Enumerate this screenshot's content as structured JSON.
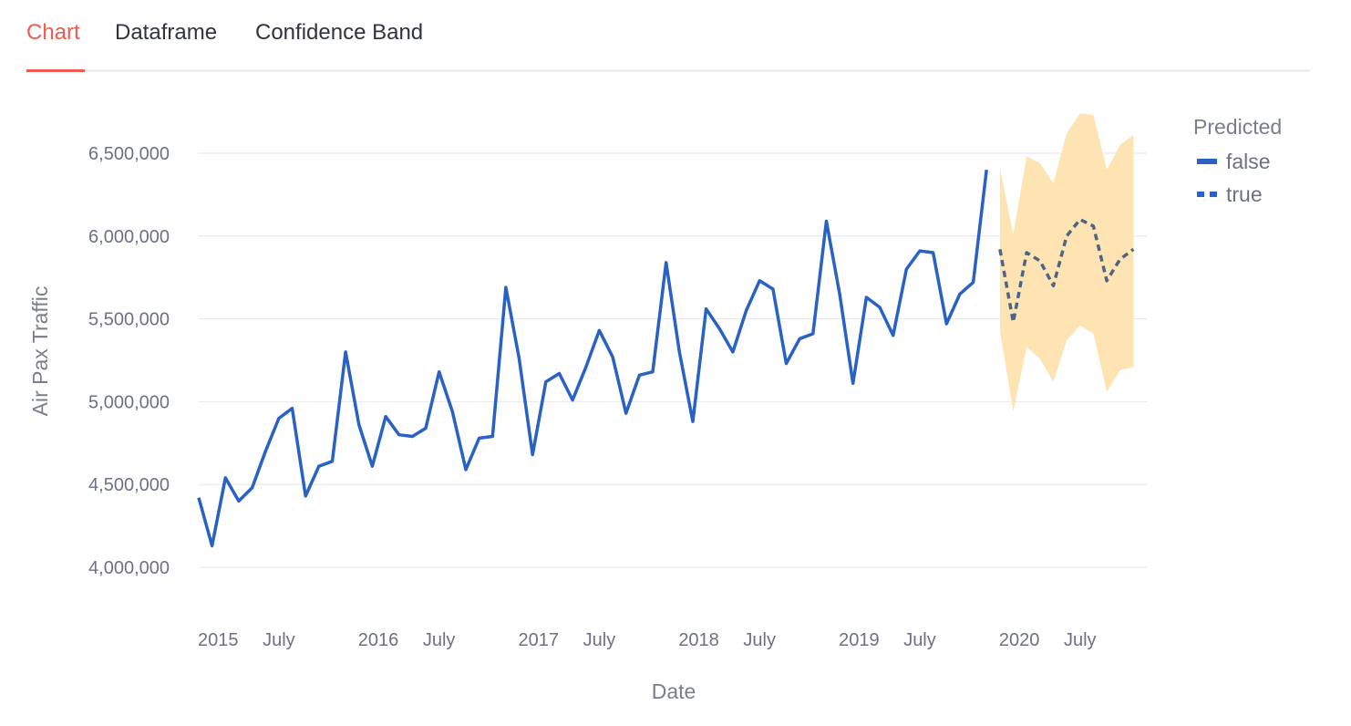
{
  "tabs": [
    {
      "label": "Chart",
      "active": true
    },
    {
      "label": "Dataframe",
      "active": false
    },
    {
      "label": "Confidence Band",
      "active": false
    }
  ],
  "chart_data": {
    "type": "line",
    "title": "",
    "xlabel": "Date",
    "ylabel": "Air Pax Traffic",
    "ylim": [
      4000000,
      6500000
    ],
    "yticks": [
      4000000,
      4500000,
      5000000,
      5500000,
      6000000,
      6500000
    ],
    "ytick_labels": [
      "4,000,000",
      "4,500,000",
      "5,000,000",
      "5,500,000",
      "6,000,000",
      "6,500,000"
    ],
    "xlim": [
      "2015-01",
      "2020-12"
    ],
    "xticks": [
      {
        "date": "2015-01",
        "label": "2015"
      },
      {
        "date": "2015-07",
        "label": "July"
      },
      {
        "date": "2016-01",
        "label": "2016"
      },
      {
        "date": "2016-07",
        "label": "July"
      },
      {
        "date": "2017-01",
        "label": "2017"
      },
      {
        "date": "2017-07",
        "label": "July"
      },
      {
        "date": "2018-01",
        "label": "2018"
      },
      {
        "date": "2018-07",
        "label": "July"
      },
      {
        "date": "2019-01",
        "label": "2019"
      },
      {
        "date": "2019-07",
        "label": "July"
      },
      {
        "date": "2020-01",
        "label": "2020"
      },
      {
        "date": "2020-07",
        "label": "July"
      }
    ],
    "grid": true,
    "legend": {
      "title": "Predicted",
      "position": "top-right"
    },
    "colors": {
      "line": "#2962c4",
      "predicted_line": "#4f6484",
      "band": "#fde4b2",
      "grid": "#e6e6ec"
    },
    "series": [
      {
        "name": "false",
        "style": "solid",
        "start": "2015-01",
        "values": [
          4420000,
          4130000,
          4540000,
          4400000,
          4480000,
          4700000,
          4900000,
          4960000,
          4430000,
          4610000,
          4640000,
          5300000,
          4860000,
          4610000,
          4910000,
          4800000,
          4790000,
          4840000,
          5180000,
          4940000,
          4590000,
          4780000,
          4790000,
          5690000,
          5260000,
          4680000,
          5120000,
          5170000,
          5010000,
          5210000,
          5430000,
          5270000,
          4930000,
          5160000,
          5180000,
          5840000,
          5300000,
          4880000,
          5560000,
          5440000,
          5300000,
          5550000,
          5730000,
          5680000,
          5230000,
          5380000,
          5410000,
          6090000,
          5650000,
          5110000,
          5630000,
          5570000,
          5400000,
          5800000,
          5910000,
          5900000,
          5470000,
          5650000,
          5720000,
          6400000
        ]
      },
      {
        "name": "true",
        "style": "dashed",
        "start": "2020-01",
        "values": [
          5920000,
          5480000,
          5900000,
          5850000,
          5700000,
          6000000,
          6100000,
          6060000,
          5730000,
          5860000,
          5920000
        ],
        "lower": [
          5430000,
          4940000,
          5330000,
          5260000,
          5120000,
          5370000,
          5460000,
          5410000,
          5060000,
          5190000,
          5210000
        ],
        "upper": [
          6410000,
          6010000,
          6480000,
          6440000,
          6320000,
          6620000,
          6740000,
          6730000,
          6400000,
          6550000,
          6610000
        ]
      }
    ]
  }
}
